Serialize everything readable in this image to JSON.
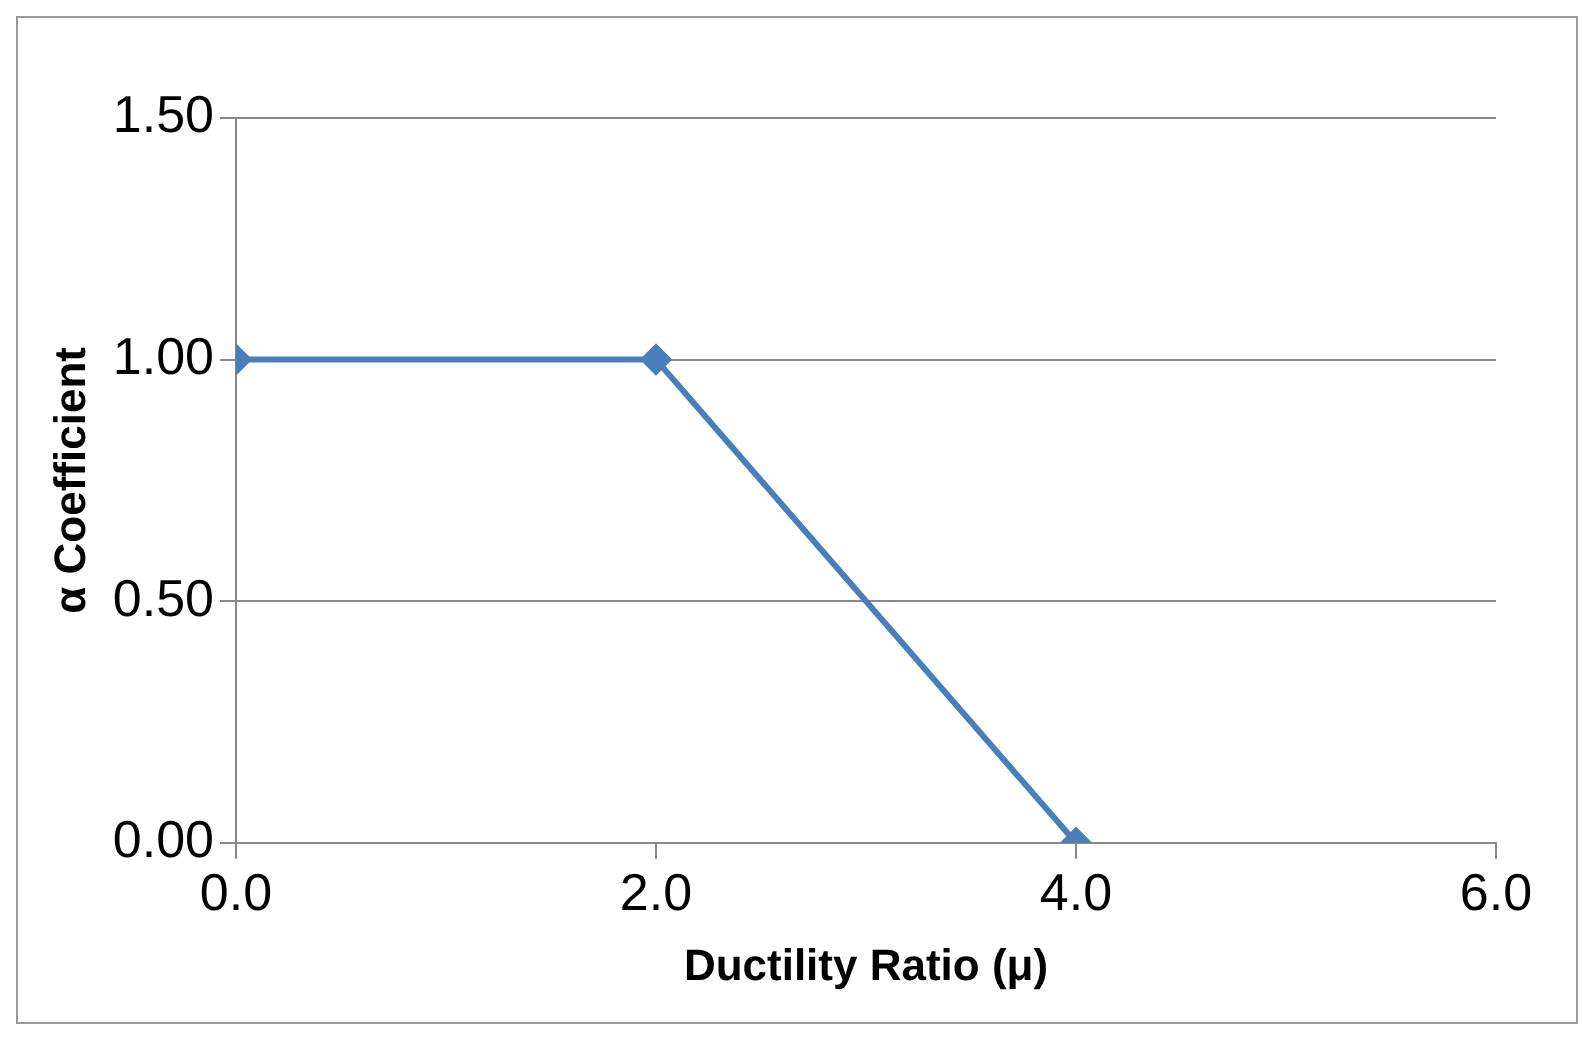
{
  "chart_data": {
    "type": "line",
    "xlabel": "Ductility Ratio (μ)",
    "ylabel": "α Coefficient",
    "x": [
      0,
      2,
      4
    ],
    "series": [
      {
        "color": "#4a7ebb",
        "values": [
          1,
          1,
          0
        ]
      }
    ],
    "xlim": [
      0,
      6
    ],
    "xticks": [
      {
        "value": 0,
        "label": "0.0"
      },
      {
        "value": 2,
        "label": "2.0"
      },
      {
        "value": 4,
        "label": "4.0"
      },
      {
        "value": 6,
        "label": "6.0"
      }
    ],
    "ylim": [
      0,
      1.5
    ],
    "yticks": [
      {
        "value": 0,
        "label": "0.00"
      },
      {
        "value": 0.5,
        "label": "0.50"
      },
      {
        "value": 1,
        "label": "1.00"
      },
      {
        "value": 1.5,
        "label": "1.50"
      }
    ],
    "grid": "y",
    "legend": false,
    "marker": "diamond",
    "line_style": "solid"
  }
}
